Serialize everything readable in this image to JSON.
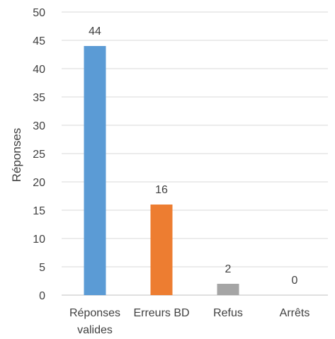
{
  "chart_data": {
    "type": "bar",
    "categories": [
      [
        "Réponses",
        "valides"
      ],
      [
        "Erreurs BD"
      ],
      [
        "Refus"
      ],
      [
        "Arrêts"
      ]
    ],
    "values": [
      44,
      16,
      2,
      0
    ],
    "colors": [
      "#5b9bd5",
      "#ed7d31",
      "#a5a5a5",
      "#ffc000"
    ],
    "ylabel": "Réponses",
    "ylim": [
      0,
      50
    ],
    "yticks": [
      0,
      5,
      10,
      15,
      20,
      25,
      30,
      35,
      40,
      45,
      50
    ],
    "grid": true,
    "data_labels": true,
    "legend": "none"
  }
}
